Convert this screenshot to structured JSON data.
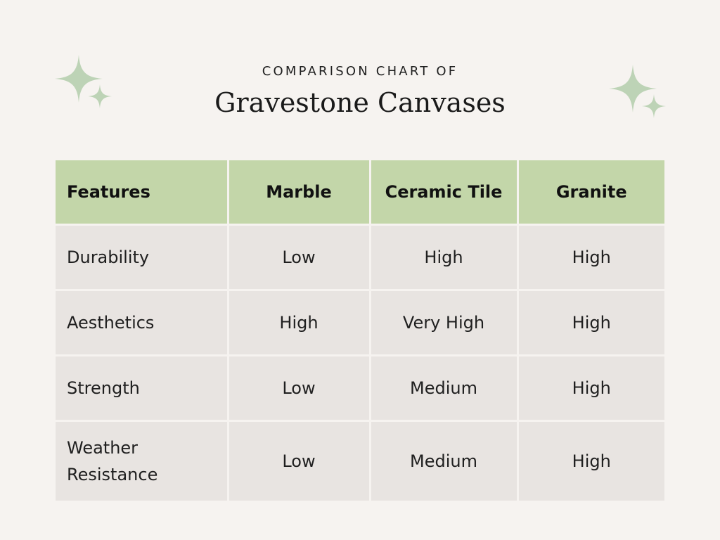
{
  "header": {
    "subtitle": "COMPARISON CHART OF",
    "title": "Gravestone Canvases"
  },
  "colors": {
    "background": "#f6f3f0",
    "header_row": "#c3d6a9",
    "body_cell": "#e8e4e1",
    "sparkle": "#bdd3b6"
  },
  "decorations": {
    "left_icon": "sparkle-icon",
    "right_icon": "sparkle-icon"
  },
  "table": {
    "columns": [
      "Features",
      "Marble",
      "Ceramic Tile",
      "Granite"
    ],
    "rows": [
      [
        "Durability",
        "Low",
        "High",
        "High"
      ],
      [
        "Aesthetics",
        "High",
        "Very High",
        "High"
      ],
      [
        "Strength",
        "Low",
        "Medium",
        "High"
      ],
      [
        "Weather Resistance",
        "Low",
        "Medium",
        "High"
      ]
    ]
  }
}
